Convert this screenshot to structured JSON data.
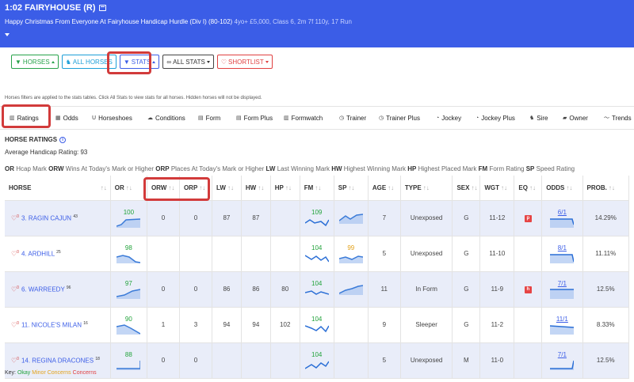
{
  "race": {
    "title": "1:02 FAIRYHOUSE (R)",
    "name": "Happy Christmas From Everyone At Fairyhouse Handicap Hurdle (Div I) (80-102)",
    "info": "4yo+ £5,000, Class 6, 2m 7f 110y, 17 Run"
  },
  "filters": {
    "horses": "HORSES",
    "all_horses": "ALL HORSES",
    "stats": "STATS",
    "all_stats": "ALL STATS",
    "shortlist": "SHORTLIST"
  },
  "filter_note": "Horses filters are applied to the stats tables. Click All Stats to view stats for all horses. Hidden horses will not be displayed.",
  "tabs": [
    "Ratings",
    "Odds",
    "Horseshoes",
    "Conditions",
    "Form",
    "Form Plus",
    "Formwatch",
    "Trainer",
    "Trainer Plus",
    "Jockey",
    "Jockey Plus",
    "Sire",
    "Owner",
    "Trends"
  ],
  "section_title": "HORSE RATINGS",
  "average_rating": "Average Handicap Rating: 93",
  "legend": [
    {
      "abbr": "OR",
      "text": "Hcap Mark"
    },
    {
      "abbr": "ORW",
      "text": "Wins At Today's Mark or Higher"
    },
    {
      "abbr": "ORP",
      "text": "Places At Today's Mark or Higher"
    },
    {
      "abbr": "LW",
      "text": "Last Winning Mark"
    },
    {
      "abbr": "HW",
      "text": "Highest Winning Mark"
    },
    {
      "abbr": "HP",
      "text": "Highest Placed Mark"
    },
    {
      "abbr": "FM",
      "text": "Form Rating"
    },
    {
      "abbr": "SP",
      "text": "Speed Rating"
    }
  ],
  "columns": [
    "HORSE",
    "OR",
    "ORW",
    "ORP",
    "LW",
    "HW",
    "HP",
    "FM",
    "SP",
    "AGE",
    "TYPE",
    "SEX",
    "WGT",
    "EQ",
    "ODDS",
    "PROB."
  ],
  "rows": [
    {
      "heart": "0",
      "name": "3. RAGIN CAJUN",
      "sup": "43",
      "or": "100",
      "or_color": "green",
      "orw": "0",
      "orp": "0",
      "lw": "87",
      "hw": "87",
      "hp": "",
      "fm": "109",
      "fm_color": "green",
      "sp": "",
      "sp_color": "",
      "age": "7",
      "type": "Unexposed",
      "sex": "G",
      "wgt": "11-12",
      "eq": "p",
      "odds": "6/1",
      "prob": "14.29%"
    },
    {
      "heart": "0",
      "name": "4. ARDHILL",
      "sup": "25",
      "or": "98",
      "or_color": "green",
      "orw": "",
      "orp": "",
      "lw": "",
      "hw": "",
      "hp": "",
      "fm": "104",
      "fm_color": "green",
      "sp": "99",
      "sp_color": "orange",
      "age": "5",
      "type": "Unexposed",
      "sex": "G",
      "wgt": "11-10",
      "eq": "",
      "odds": "8/1",
      "prob": "11.11%"
    },
    {
      "heart": "0",
      "name": "6. WARREEDY",
      "sup": "96",
      "or": "97",
      "or_color": "green",
      "orw": "0",
      "orp": "0",
      "lw": "86",
      "hw": "86",
      "hp": "80",
      "fm": "104",
      "fm_color": "green",
      "sp": "",
      "sp_color": "",
      "age": "11",
      "type": "In Form",
      "sex": "G",
      "wgt": "11-9",
      "eq": "h",
      "odds": "7/1",
      "prob": "12.5%"
    },
    {
      "heart": "0",
      "name": "11. NICOLE'S MILAN",
      "sup": "16",
      "or": "90",
      "or_color": "green",
      "orw": "1",
      "orp": "3",
      "lw": "94",
      "hw": "94",
      "hp": "102",
      "fm": "104",
      "fm_color": "green",
      "sp": "",
      "sp_color": "",
      "age": "9",
      "type": "Sleeper",
      "sex": "G",
      "wgt": "11-2",
      "eq": "",
      "odds": "11/1",
      "prob": "8.33%"
    },
    {
      "heart": "0",
      "name": "14. REGINA DRACONES",
      "sup": "18",
      "or": "88",
      "or_color": "green",
      "orw": "0",
      "orp": "0",
      "lw": "",
      "hw": "",
      "hp": "",
      "fm": "104",
      "fm_color": "green",
      "sp": "",
      "sp_color": "",
      "age": "5",
      "type": "Unexposed",
      "sex": "M",
      "wgt": "11-0",
      "eq": "",
      "odds": "7/1",
      "prob": "12.5%"
    }
  ],
  "key": {
    "label": "Key:",
    "okay": "Okay",
    "minor": "Minor Concerns",
    "concerns": "Concerns"
  }
}
